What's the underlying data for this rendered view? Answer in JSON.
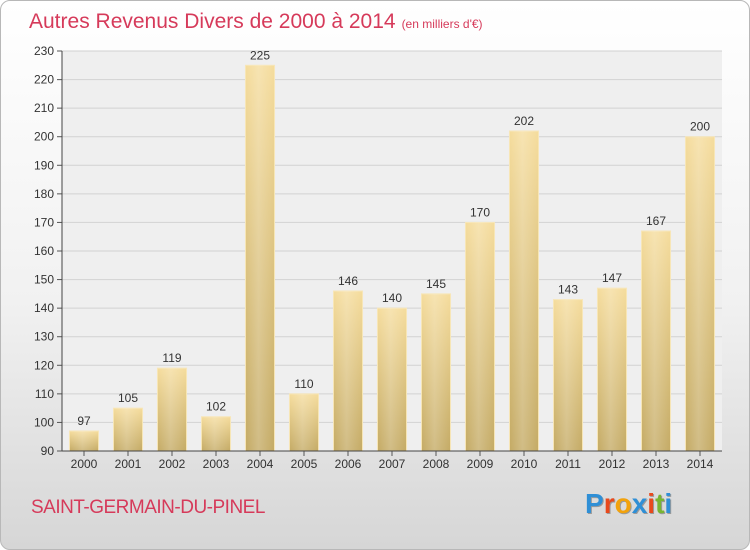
{
  "title": "Autres Revenus Divers de 2000 à 2014",
  "subtitle": "(en milliers d'€)",
  "location": "SAINT-GERMAIN-DU-PINEL",
  "logo": {
    "letters": [
      "P",
      "r",
      "o",
      "x",
      "i",
      "t",
      "i"
    ],
    "colors": [
      "#2f8fd6",
      "#e8491c",
      "#f2a20c",
      "#2f8fd6",
      "#e8491c",
      "#78b532",
      "#2f8fd6"
    ]
  },
  "chart_data": {
    "type": "bar",
    "categories": [
      "2000",
      "2001",
      "2002",
      "2003",
      "2004",
      "2005",
      "2006",
      "2007",
      "2008",
      "2009",
      "2010",
      "2011",
      "2012",
      "2013",
      "2014"
    ],
    "values": [
      97,
      105,
      119,
      102,
      225,
      110,
      146,
      140,
      145,
      170,
      202,
      143,
      147,
      167,
      200
    ],
    "yticks": [
      90,
      100,
      110,
      120,
      130,
      140,
      150,
      160,
      170,
      180,
      190,
      200,
      210,
      220,
      230
    ],
    "ylim": [
      90,
      230
    ],
    "grid": true,
    "bar_color": "#e3c681"
  }
}
